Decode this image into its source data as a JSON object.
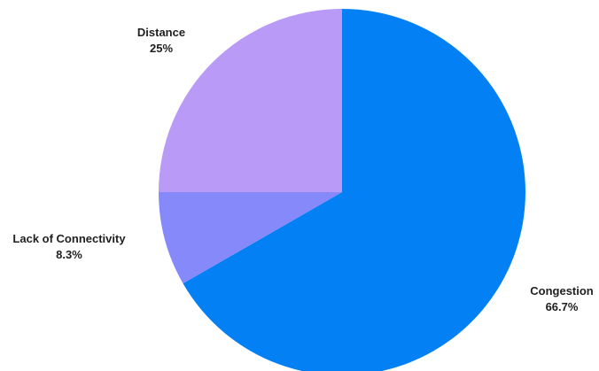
{
  "chart_data": {
    "type": "pie",
    "title": "",
    "slices": [
      {
        "label": "Congestion",
        "value": 66.7,
        "percent_label": "66.7%",
        "color": "#0380f4"
      },
      {
        "label": "Lack of Connectivity",
        "value": 8.3,
        "percent_label": "8.3%",
        "color": "#8689fa"
      },
      {
        "label": "Distance",
        "value": 25,
        "percent_label": "25%",
        "color": "#b99af7"
      }
    ],
    "start_angle": "12 o'clock",
    "direction": "clockwise",
    "legend": "none",
    "data_labels": "outside"
  }
}
